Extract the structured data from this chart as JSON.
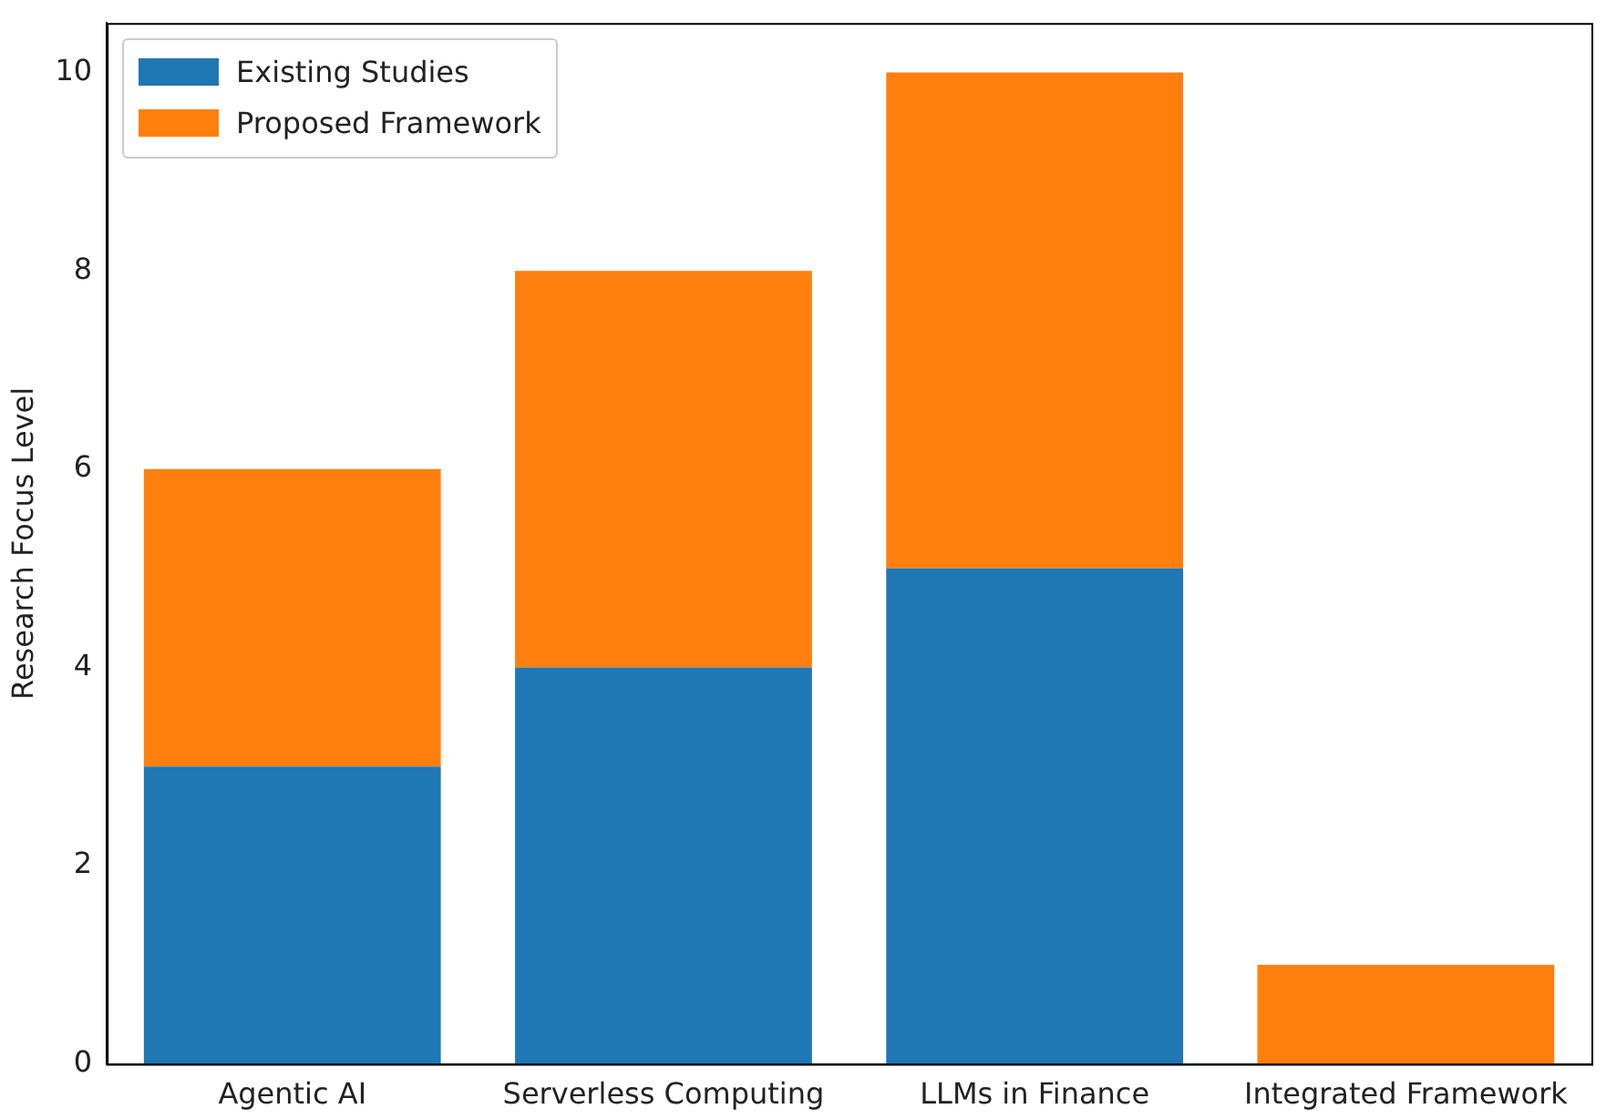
{
  "chart_data": {
    "type": "bar",
    "stacked": true,
    "ylabel": "Research Focus Level",
    "categories": [
      "Agentic AI",
      "Serverless Computing",
      "LLMs in Finance",
      "Integrated Framework"
    ],
    "series": [
      {
        "name": "Existing Studies",
        "color": "#1f77b4",
        "values": [
          3,
          4,
          5,
          0
        ]
      },
      {
        "name": "Proposed Framework",
        "color": "#ff7f0e",
        "values": [
          3,
          4,
          5,
          1
        ]
      }
    ],
    "ylim": [
      0,
      10.5
    ],
    "yticks": [
      0,
      2,
      4,
      6,
      8,
      10
    ],
    "grid": false,
    "legend": "top left"
  }
}
